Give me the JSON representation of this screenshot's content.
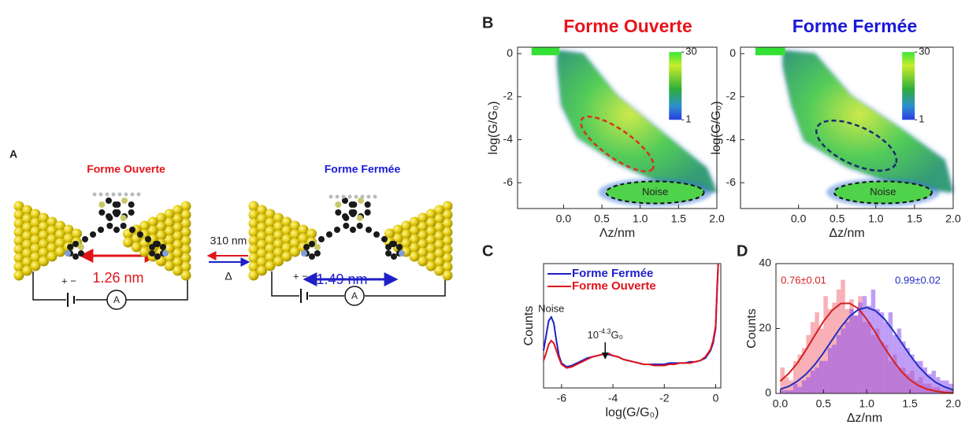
{
  "panel_a": {
    "label": "A",
    "open_form": {
      "title": "Forme Ouverte",
      "distance": "1.26 nm",
      "polarity": "+ −",
      "meter": "A"
    },
    "closed_form": {
      "title": "Forme Fermée",
      "distance": "1.49 nm",
      "polarity": "+ −",
      "meter": "A"
    },
    "switch": {
      "forward": "310 nm",
      "backward": "Δ"
    }
  },
  "chart_data": [
    {
      "type": "heatmap",
      "panel_label": "B",
      "title": "Forme Ouverte",
      "title_color": "#e8141b",
      "xlabel": "Λz/nm",
      "ylabel": "log(G/G₀)",
      "xlim": [
        -0.6,
        2.0
      ],
      "xticks": [
        {
          "value": 0,
          "label": "0.0"
        },
        {
          "value": 0.5,
          "label": "0.5"
        },
        {
          "value": 1,
          "label": "1.0"
        },
        {
          "value": 1.5,
          "label": "1.5"
        },
        {
          "value": 2,
          "label": "2.0"
        }
      ],
      "ylim": [
        -7.2,
        0.3
      ],
      "yticks": [
        0,
        -2,
        -4,
        -6
      ],
      "colorbar": {
        "lim": [
          1,
          30
        ],
        "ticks": [
          30,
          1
        ]
      },
      "region_color": "#d8321e",
      "annotation": "Noise"
    },
    {
      "type": "heatmap",
      "title": "Forme Fermée",
      "title_color": "#1a1ad8",
      "xlabel": "Δz/nm",
      "ylabel": "log(G/G₀)",
      "xlim": [
        -0.75,
        2.0
      ],
      "xticks": [
        {
          "value": 0,
          "label": "0.0"
        },
        {
          "value": 0.5,
          "label": "0.5"
        },
        {
          "value": 1,
          "label": "1.0"
        },
        {
          "value": 1.5,
          "label": "1.5"
        },
        {
          "value": 2,
          "label": "2.0"
        }
      ],
      "ylim": [
        -7.2,
        0.3
      ],
      "yticks": [
        0,
        -2,
        -4,
        -6
      ],
      "colorbar": {
        "lim": [
          1,
          30
        ],
        "ticks": [
          30,
          1
        ]
      },
      "region_color": "#1c2a6e",
      "annotation": "Noise"
    },
    {
      "type": "line",
      "panel_label": "C",
      "xlabel": "log(G/G₀)",
      "ylabel": "Counts",
      "xlim": [
        -6.7,
        0.2
      ],
      "xticks": [
        -6,
        -4,
        -2,
        0
      ],
      "ylim": [
        0,
        100
      ],
      "x": [
        -6.7,
        -6.6,
        -6.5,
        -6.4,
        -6.3,
        -6.2,
        -6.1,
        -6.0,
        -5.8,
        -5.6,
        -5.4,
        -5.2,
        -5.0,
        -4.8,
        -4.6,
        -4.4,
        -4.2,
        -4.0,
        -3.8,
        -3.6,
        -3.4,
        -3.2,
        -3.0,
        -2.8,
        -2.6,
        -2.4,
        -2.2,
        -2.0,
        -1.8,
        -1.6,
        -1.4,
        -1.2,
        -1.0,
        -0.8,
        -0.6,
        -0.4,
        -0.2,
        -0.1,
        0,
        0.05,
        0.1
      ],
      "series": [
        {
          "name": "Forme Fermée",
          "color": "#1f1fc8",
          "values": [
            30,
            42,
            54,
            57,
            52,
            38,
            26,
            20,
            17,
            18,
            20,
            22,
            24,
            25,
            26,
            27,
            27,
            26,
            25,
            23,
            22,
            21,
            20,
            19,
            19,
            19,
            19,
            19,
            20,
            20,
            20,
            20,
            21,
            21,
            22,
            24,
            30,
            36,
            48,
            75,
            100
          ]
        },
        {
          "name": "Forme Ouverte",
          "color": "#e0141b",
          "values": [
            22,
            28,
            35,
            38,
            36,
            30,
            24,
            19,
            16,
            17,
            19,
            21,
            23,
            25,
            26,
            27,
            28,
            26,
            25,
            23,
            22,
            21,
            20,
            19,
            19,
            18,
            18,
            18,
            19,
            19,
            20,
            20,
            20,
            21,
            22,
            25,
            31,
            38,
            50,
            78,
            100
          ]
        }
      ],
      "noise_label": "Noise",
      "peak": {
        "base": "10",
        "exponent": {
          "value": -4.3,
          "label": "-4.3"
        },
        "unit": "G₀"
      }
    },
    {
      "type": "histogram",
      "panel_label": "D",
      "xlabel": "Δz/nm",
      "ylabel": "Counts",
      "xlim": [
        -0.05,
        2.0
      ],
      "xticks": [
        {
          "value": 0,
          "label": "0.0"
        },
        {
          "value": 0.5,
          "label": "0.5"
        },
        {
          "value": 1,
          "label": "1.0"
        },
        {
          "value": 1.5,
          "label": "1.5"
        },
        {
          "value": 2,
          "label": "2.0"
        }
      ],
      "ylim": [
        0,
        40
      ],
      "yticks": [
        0,
        20,
        40
      ],
      "bins": [
        0,
        0.05,
        0.1,
        0.15,
        0.2,
        0.25,
        0.3,
        0.35,
        0.4,
        0.45,
        0.5,
        0.55,
        0.6,
        0.65,
        0.7,
        0.75,
        0.8,
        0.85,
        0.9,
        0.95,
        1.0,
        1.05,
        1.1,
        1.15,
        1.2,
        1.25,
        1.3,
        1.35,
        1.4,
        1.45,
        1.5,
        1.55,
        1.6,
        1.65,
        1.7,
        1.75,
        1.8,
        1.85,
        1.9,
        1.95,
        2.0
      ],
      "series": [
        {
          "color": "#f2707a",
          "values": [
            8,
            5,
            4,
            10,
            12,
            14,
            18,
            22,
            25,
            20,
            30,
            26,
            28,
            32,
            35,
            26,
            29,
            24,
            30,
            22,
            22,
            18,
            20,
            16,
            15,
            10,
            12,
            8,
            8,
            6,
            7,
            4,
            5,
            3,
            3,
            2,
            2,
            1,
            1,
            1
          ]
        },
        {
          "color": "#8a4cf0",
          "values": [
            1,
            1,
            1,
            3,
            2,
            4,
            5,
            7,
            8,
            10,
            10,
            14,
            15,
            18,
            20,
            22,
            26,
            24,
            28,
            30,
            27,
            32,
            26,
            25,
            22,
            25,
            18,
            20,
            16,
            14,
            12,
            10,
            10,
            8,
            6,
            7,
            5,
            4,
            4,
            3
          ]
        }
      ],
      "fit_x": [
        0,
        0.1,
        0.2,
        0.3,
        0.4,
        0.5,
        0.6,
        0.7,
        0.8,
        0.9,
        1.0,
        1.1,
        1.2,
        1.3,
        1.4,
        1.5,
        1.6,
        1.7,
        1.8,
        1.9,
        2.0
      ],
      "fits": [
        {
          "color": "#d42020",
          "label": "0.76±0.01",
          "values": [
            3.8,
            6.2,
            9.4,
            13.5,
            17.9,
            22.2,
            25.6,
            27.7,
            27.8,
            26.2,
            22.9,
            18.8,
            14.3,
            10.3,
            6.8,
            4.2,
            2.4,
            1.3,
            0.7,
            0.3,
            0.2
          ]
        },
        {
          "color": "#1f2fc0",
          "label": "0.99±0.02",
          "values": [
            1.3,
            2.2,
            3.8,
            6.0,
            8.9,
            12.5,
            16.5,
            20.4,
            23.7,
            25.8,
            26.5,
            25.5,
            23.1,
            19.6,
            15.7,
            11.8,
            8.3,
            5.5,
            3.4,
            2.0,
            1.1
          ]
        }
      ]
    }
  ]
}
